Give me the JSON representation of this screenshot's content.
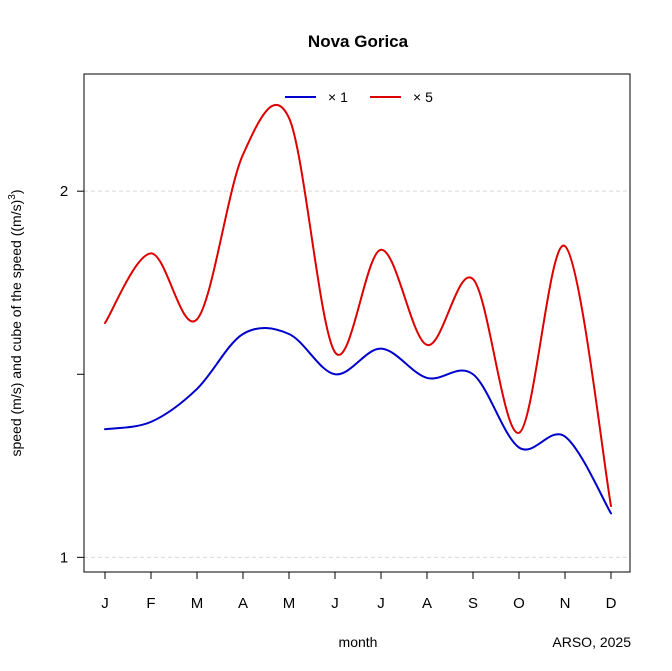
{
  "chart_data": {
    "type": "line",
    "title": "Nova Gorica",
    "xlabel": "month",
    "ylabel": "speed (m/s) and cube of the speed ((m/s)",
    "ylabel_superscript": "3",
    "ylabel_close": ")",
    "caption": "ARSO, 2025",
    "x": [
      "J",
      "F",
      "M",
      "A",
      "M",
      "J",
      "J",
      "A",
      "S",
      "O",
      "N",
      "D"
    ],
    "yticks": [
      {
        "value": 1,
        "label": "1"
      },
      {
        "value": 1.5,
        "label": ""
      },
      {
        "value": 2,
        "label": "2"
      }
    ],
    "ylim": [
      0.96,
      2.32
    ],
    "grid": "horizontal dashed at 1 and 2",
    "legend_position": "top",
    "series": [
      {
        "name": "× 1",
        "color": "#0000cc",
        "values": [
          1.35,
          1.37,
          1.46,
          1.61,
          1.61,
          1.5,
          1.57,
          1.49,
          1.5,
          1.3,
          1.33,
          1.12
        ]
      },
      {
        "name": "× 5",
        "color": "#dd0000",
        "values": [
          1.64,
          1.83,
          1.65,
          2.1,
          2.2,
          1.56,
          1.84,
          1.58,
          1.76,
          1.34,
          1.85,
          1.14
        ]
      }
    ]
  }
}
